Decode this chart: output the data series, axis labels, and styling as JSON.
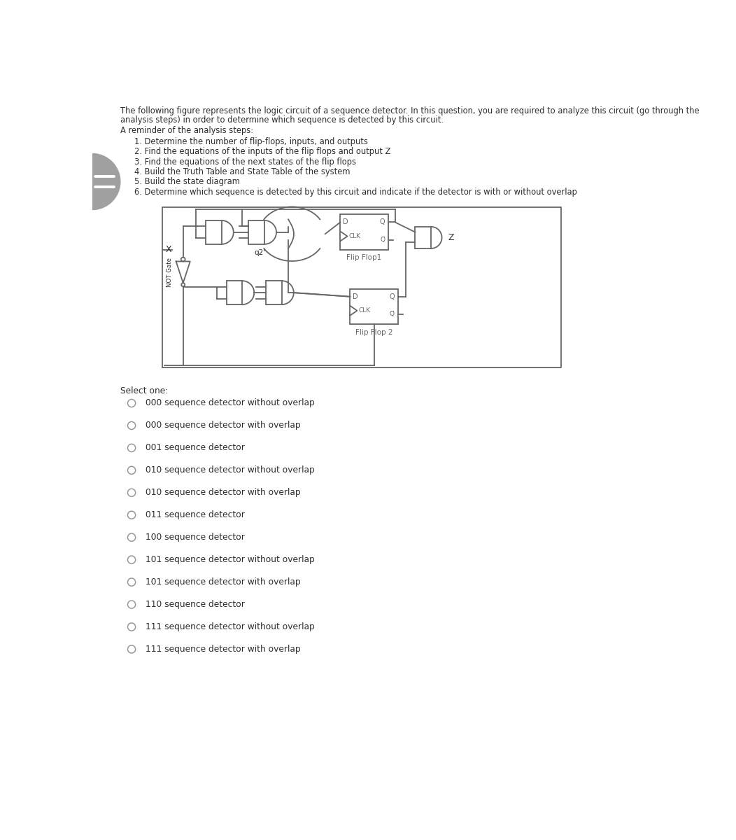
{
  "bg_color": "#ffffff",
  "text_color": "#2d2d2d",
  "line_color": "#666666",
  "title_line1": "The following figure represents the logic circuit of a sequence detector. In this question, you are required to analyze this circuit (go through the",
  "title_line2": "analysis steps) in order to determine which sequence is detected by this circuit.",
  "reminder_title": "A reminder of the analysis steps:",
  "steps": [
    "1. Determine the number of flip-flops, inputs, and outputs",
    "2. Find the equations of the inputs of the flip flops and output Z",
    "3. Find the equations of the next states of the flip flops",
    "4. Build the Truth Table and State Table of the system",
    "5. Build the state diagram",
    "6. Determine which sequence is detected by this circuit and indicate if the detector is with or without overlap"
  ],
  "select_one": "Select one:",
  "options": [
    "000 sequence detector without overlap",
    "000 sequence detector with overlap",
    "001 sequence detector",
    "010 sequence detector without overlap",
    "010 sequence detector with overlap",
    "011 sequence detector",
    "100 sequence detector",
    "101 sequence detector without overlap",
    "101 sequence detector with overlap",
    "110 sequence detector",
    "111 sequence detector without overlap",
    "111 sequence detector with overlap"
  ],
  "not_gate_label": "NOT Gate",
  "q2_label": "q2'",
  "x_label": "X",
  "z_label": "Z",
  "clk_label1": "CLK",
  "clk_label2": "CLK",
  "ff1_label": "Flip Flop1",
  "ff2_label": "Flip Flop 2"
}
